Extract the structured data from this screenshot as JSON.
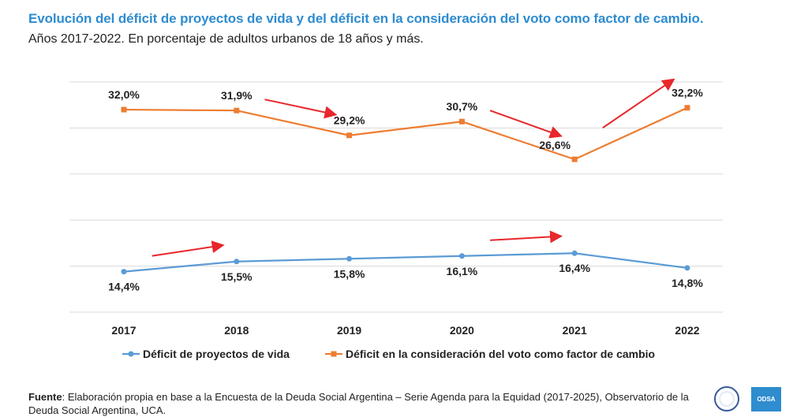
{
  "header": {
    "title": "Evolución del déficit de proyectos de vida y del déficit en la consideración del voto como factor de cambio.",
    "subtitle": "Años 2017-2022. En porcentaje de adultos urbanos de 18 años y más."
  },
  "chart_data": {
    "type": "line",
    "title": "Evolución del déficit de proyectos de vida y del déficit en la consideración del voto como factor de cambio.",
    "subtitle": "Años 2017-2022. En porcentaje de adultos urbanos de 18 años y más.",
    "xlabel": "",
    "ylabel": "",
    "categories": [
      "2017",
      "2018",
      "2019",
      "2020",
      "2021",
      "2022"
    ],
    "ylim": [
      10,
      35
    ],
    "grid": true,
    "legend_position": "bottom",
    "series": [
      {
        "name": "Déficit de proyectos de vida",
        "color": "#5b9bd5",
        "marker": "circle",
        "values": [
          14.4,
          15.5,
          15.8,
          16.1,
          16.4,
          14.8
        ],
        "labels": [
          "14,4%",
          "15,5%",
          "15,8%",
          "16,1%",
          "16,4%",
          "14,8%"
        ]
      },
      {
        "name": "Déficit en la consideración del voto como factor de cambio",
        "color": "#ed7d31",
        "marker": "square",
        "values": [
          32.0,
          31.9,
          29.2,
          30.7,
          26.6,
          32.2
        ],
        "labels": [
          "32,0%",
          "31,9%",
          "29,2%",
          "30,7%",
          "26,6%",
          "32,2%"
        ]
      }
    ],
    "annotation_arrows": {
      "color": "#e8262b",
      "items": [
        {
          "series": 1,
          "from": "2018",
          "to": "2019",
          "direction": "down"
        },
        {
          "series": 1,
          "from": "2020",
          "to": "2021",
          "direction": "down"
        },
        {
          "series": 1,
          "from": "2021",
          "to": "2022",
          "direction": "up"
        },
        {
          "series": 0,
          "from": "2017",
          "to": "2018",
          "direction": "up"
        },
        {
          "series": 0,
          "from": "2020",
          "to": "2021",
          "direction": "up"
        }
      ]
    }
  },
  "footer": {
    "source_label": "Fuente",
    "source_text": ": Elaboración propia en base a la Encuesta de la Deuda Social Argentina – Serie Agenda para la Equidad (2017-2025), Observatorio de la Deuda Social Argentina, UCA.",
    "logo_badge": "ODSA"
  },
  "colors": {
    "title": "#2e8ccf",
    "grid": "#d9d9d9"
  }
}
